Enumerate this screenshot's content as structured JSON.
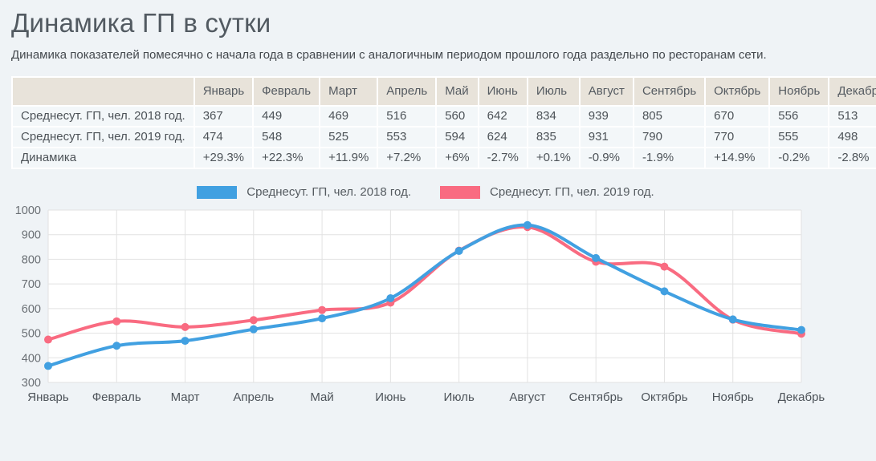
{
  "page": {
    "title": "Динамика ГП в сутки",
    "subtitle": "Динамика показателей помесячно с начала года в сравнении с аналогичным периодом прошлого года раздельно по ресторанам сети."
  },
  "months": [
    "Январь",
    "Февраль",
    "Март",
    "Апрель",
    "Май",
    "Июнь",
    "Июль",
    "Август",
    "Сентябрь",
    "Октябрь",
    "Ноябрь",
    "Декабрь"
  ],
  "table": {
    "header_first_cell": "",
    "rows": [
      {
        "label": "Среднесут. ГП, чел. 2018 год.",
        "type": "value",
        "values": [
          "367",
          "449",
          "469",
          "516",
          "560",
          "642",
          "834",
          "939",
          "805",
          "670",
          "556",
          "513"
        ]
      },
      {
        "label": "Среднесут. ГП, чел. 2019 год.",
        "type": "value",
        "values": [
          "474",
          "548",
          "525",
          "553",
          "594",
          "624",
          "835",
          "931",
          "790",
          "770",
          "555",
          "498"
        ]
      },
      {
        "label": "Динамика",
        "type": "percent",
        "values": [
          "+29.3%",
          "+22.3%",
          "+11.9%",
          "+7.2%",
          "+6%",
          "-2.7%",
          "+0.1%",
          "-0.9%",
          "-1.9%",
          "+14.9%",
          "-0.2%",
          "-2.8%"
        ]
      }
    ]
  },
  "colors": {
    "positive": "#3fa23d",
    "negative": "#ca564b",
    "series_2018": "#41a0e1",
    "series_2019": "#f96b81",
    "grid": "#e2e2e2",
    "plot_bg": "#ffffff",
    "axis_text": "#6a6f74",
    "x_label_text": "#4e545a",
    "header_bg": "#e8e3da",
    "row_bg": "#f3f7f9"
  },
  "chart_data": {
    "type": "line",
    "x": [
      "Январь",
      "Февраль",
      "Март",
      "Апрель",
      "Май",
      "Июнь",
      "Июль",
      "Август",
      "Сентябрь",
      "Октябрь",
      "Ноябрь",
      "Декабрь"
    ],
    "series": [
      {
        "name": "Среднесут. ГП, чел. 2018 год.",
        "color": "#41a0e1",
        "values": [
          367,
          449,
          469,
          516,
          560,
          642,
          834,
          939,
          805,
          670,
          556,
          513
        ]
      },
      {
        "name": "Среднесут. ГП, чел. 2019 год.",
        "color": "#f96b81",
        "values": [
          474,
          548,
          525,
          553,
          594,
          624,
          835,
          931,
          790,
          770,
          555,
          498
        ]
      }
    ],
    "title": "",
    "xlabel": "",
    "ylabel": "",
    "ylim": [
      300,
      1000
    ],
    "ytick_step": 100,
    "grid": true,
    "smooth": true,
    "legend_position": "top"
  }
}
